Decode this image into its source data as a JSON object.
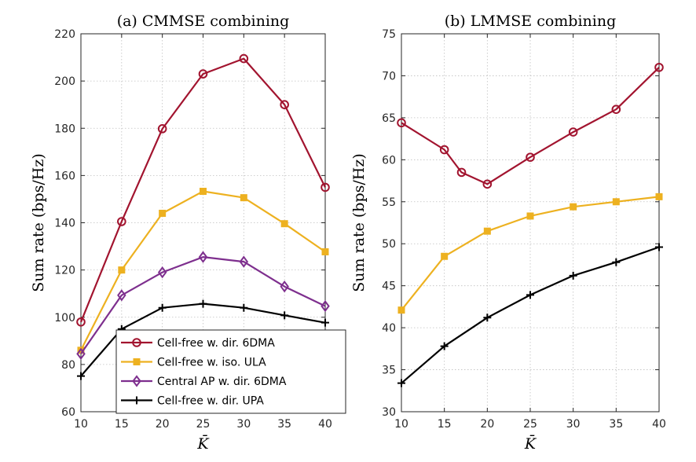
{
  "colors": {
    "cf_6dma": "#A2142F",
    "cf_ula": "#EDB120",
    "central_6dma": "#7E2F8E",
    "cf_upa": "#000000",
    "grid": "#bfbfbf",
    "axis": "#262626"
  },
  "chart_data": [
    {
      "type": "line",
      "title": "(a) CMMSE combining",
      "xlabel": "K̄",
      "ylabel": "Sum rate (bps/Hz)",
      "xlim": [
        10,
        40
      ],
      "ylim": [
        60,
        220
      ],
      "xticks": [
        10,
        15,
        20,
        25,
        30,
        35,
        40
      ],
      "yticks": [
        60,
        80,
        100,
        120,
        140,
        160,
        180,
        200,
        220
      ],
      "grid": true,
      "legend_position": "bottom-left",
      "series": [
        {
          "name": "Cell-free w. dir. 6DMA",
          "color_key": "cf_6dma",
          "marker": "circle",
          "x": [
            10,
            15,
            20,
            25,
            30,
            35,
            40
          ],
          "values": [
            98,
            140.5,
            179.8,
            203,
            209.5,
            190,
            155
          ]
        },
        {
          "name": "Cell-free w. iso. ULA",
          "color_key": "cf_ula",
          "marker": "square",
          "x": [
            10,
            15,
            20,
            25,
            30,
            35,
            40
          ],
          "values": [
            86,
            120,
            144,
            153.3,
            150.6,
            139.6,
            127.7
          ]
        },
        {
          "name": "Central AP w. dir. 6DMA",
          "color_key": "central_6dma",
          "marker": "diamond",
          "x": [
            10,
            15,
            20,
            25,
            30,
            35,
            40
          ],
          "values": [
            84.5,
            109.3,
            119,
            125.5,
            123.5,
            113,
            104.7
          ]
        },
        {
          "name": "Cell-free w. dir. UPA",
          "color_key": "cf_upa",
          "marker": "plus",
          "x": [
            10,
            15,
            20,
            25,
            30,
            35,
            40
          ],
          "values": [
            75.1,
            95,
            104,
            105.7,
            104,
            100.8,
            97.7
          ]
        }
      ]
    },
    {
      "type": "line",
      "title": "(b) LMMSE combining",
      "xlabel": "K̄",
      "ylabel": "Sum rate (bps/Hz)",
      "xlim": [
        10,
        40
      ],
      "ylim": [
        30,
        75
      ],
      "xticks": [
        10,
        15,
        20,
        25,
        30,
        35,
        40
      ],
      "yticks": [
        30,
        35,
        40,
        45,
        50,
        55,
        60,
        65,
        70,
        75
      ],
      "grid": true,
      "series": [
        {
          "name": "Cell-free w. dir. 6DMA",
          "color_key": "cf_6dma",
          "marker": "circle",
          "x": [
            10,
            15,
            17,
            20,
            25,
            30,
            35,
            40
          ],
          "values": [
            64.4,
            61.2,
            58.5,
            57.1,
            60.3,
            63.3,
            66,
            71
          ]
        },
        {
          "name": "Cell-free w. iso. ULA",
          "color_key": "cf_ula",
          "marker": "square",
          "x": [
            10,
            15,
            20,
            25,
            30,
            35,
            40
          ],
          "values": [
            42.1,
            48.5,
            51.5,
            53.3,
            54.4,
            55,
            55.6
          ]
        },
        {
          "name": "Cell-free w. dir. UPA",
          "color_key": "cf_upa",
          "marker": "plus",
          "x": [
            10,
            15,
            20,
            25,
            30,
            35,
            40
          ],
          "values": [
            33.4,
            37.8,
            41.2,
            43.9,
            46.2,
            47.8,
            49.6
          ]
        }
      ]
    }
  ]
}
